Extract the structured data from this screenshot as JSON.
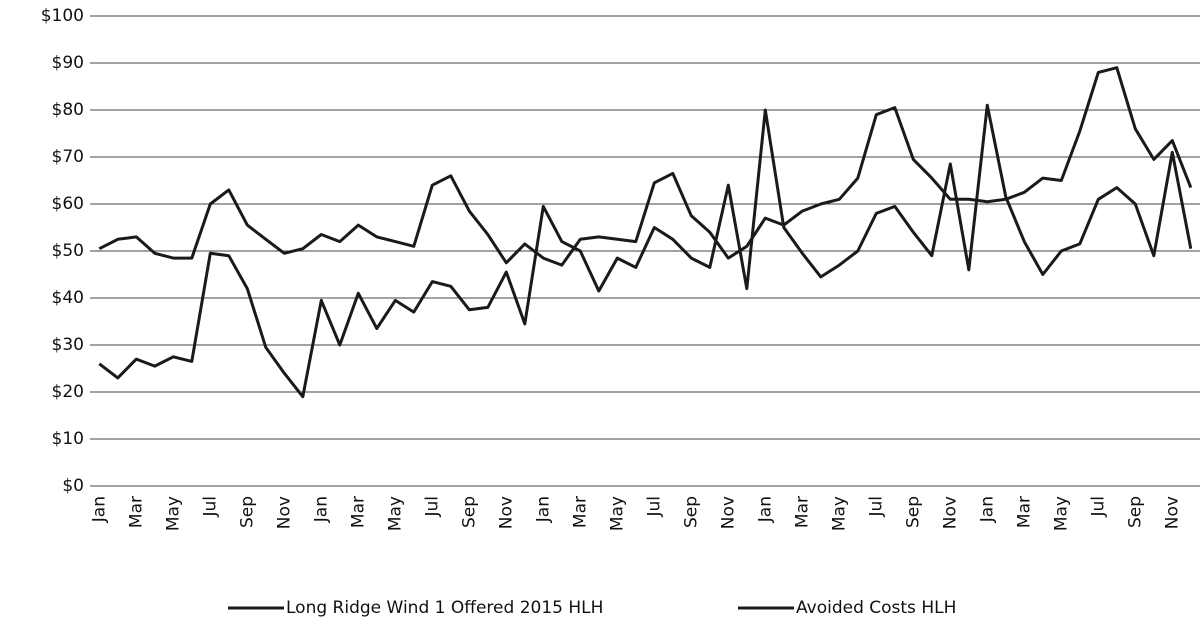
{
  "chart_data": {
    "type": "line",
    "categories": [
      "Jan",
      null,
      "Mar",
      null,
      "May",
      null,
      "Jul",
      null,
      "Sep",
      null,
      "Nov",
      null,
      "Jan",
      null,
      "Mar",
      null,
      "May",
      null,
      "Jul",
      null,
      "Sep",
      null,
      "Nov",
      null,
      "Jan",
      null,
      "Mar",
      null,
      "May",
      null,
      "Jul",
      null,
      "Sep",
      null,
      "Nov",
      null,
      "Jan",
      null,
      "Mar",
      null,
      "May",
      null,
      "Jul",
      null,
      "Sep",
      null,
      "Nov",
      null,
      "Jan",
      null,
      "Mar",
      null,
      "May",
      null,
      "Jul",
      null,
      "Sep",
      null,
      "Nov",
      null
    ],
    "series": [
      {
        "name": "Long Ridge Wind 1 Offered 2015 HLH",
        "color": "#1a1a1a",
        "values": [
          50.5,
          52.5,
          53,
          49.5,
          48.5,
          48.5,
          60,
          63,
          55.5,
          52.5,
          49.5,
          50.5,
          53.5,
          52,
          55.5,
          53,
          52,
          51,
          64,
          66,
          58.5,
          53.5,
          47.5,
          51.5,
          48.5,
          47,
          52.5,
          53,
          52.5,
          52,
          64.5,
          66.5,
          57.5,
          54,
          48.5,
          51,
          57,
          55.5,
          58.5,
          60,
          61,
          65.5,
          79,
          80.5,
          69.5,
          65.5,
          61,
          61,
          60.5,
          61,
          62.5,
          65.5,
          65,
          75.5,
          88,
          89,
          76,
          69.5,
          73.5,
          63.5
        ]
      },
      {
        "name": "Avoided Costs HLH",
        "color": "#1a1a1a",
        "values": [
          26,
          23,
          27,
          25.5,
          27.5,
          26.5,
          49.5,
          49,
          42,
          29.5,
          24,
          19,
          39.5,
          30,
          41,
          33.5,
          39.5,
          37,
          43.5,
          42.5,
          37.5,
          38,
          45.5,
          34.5,
          59.5,
          52,
          50,
          41.5,
          48.5,
          46.5,
          55,
          52.5,
          48.5,
          46.5,
          64,
          42,
          80,
          55,
          49.5,
          44.5,
          47,
          50,
          58,
          59.5,
          54,
          49,
          68.5,
          46,
          81,
          61.5,
          52,
          45,
          50,
          51.5,
          61,
          63.5,
          60,
          49,
          71,
          50.5
        ]
      }
    ],
    "ylim": [
      0,
      100
    ],
    "yticks": [
      {
        "value": 0,
        "label": "$0"
      },
      {
        "value": 10,
        "label": "$10"
      },
      {
        "value": 20,
        "label": "$20"
      },
      {
        "value": 30,
        "label": "$30"
      },
      {
        "value": 40,
        "label": "$40"
      },
      {
        "value": 50,
        "label": "$50"
      },
      {
        "value": 60,
        "label": "$60"
      },
      {
        "value": 70,
        "label": "$70"
      },
      {
        "value": 80,
        "label": "$80"
      },
      {
        "value": 90,
        "label": "$90"
      },
      {
        "value": 100,
        "label": "$100"
      }
    ],
    "grid": true,
    "legend": "bottom"
  }
}
